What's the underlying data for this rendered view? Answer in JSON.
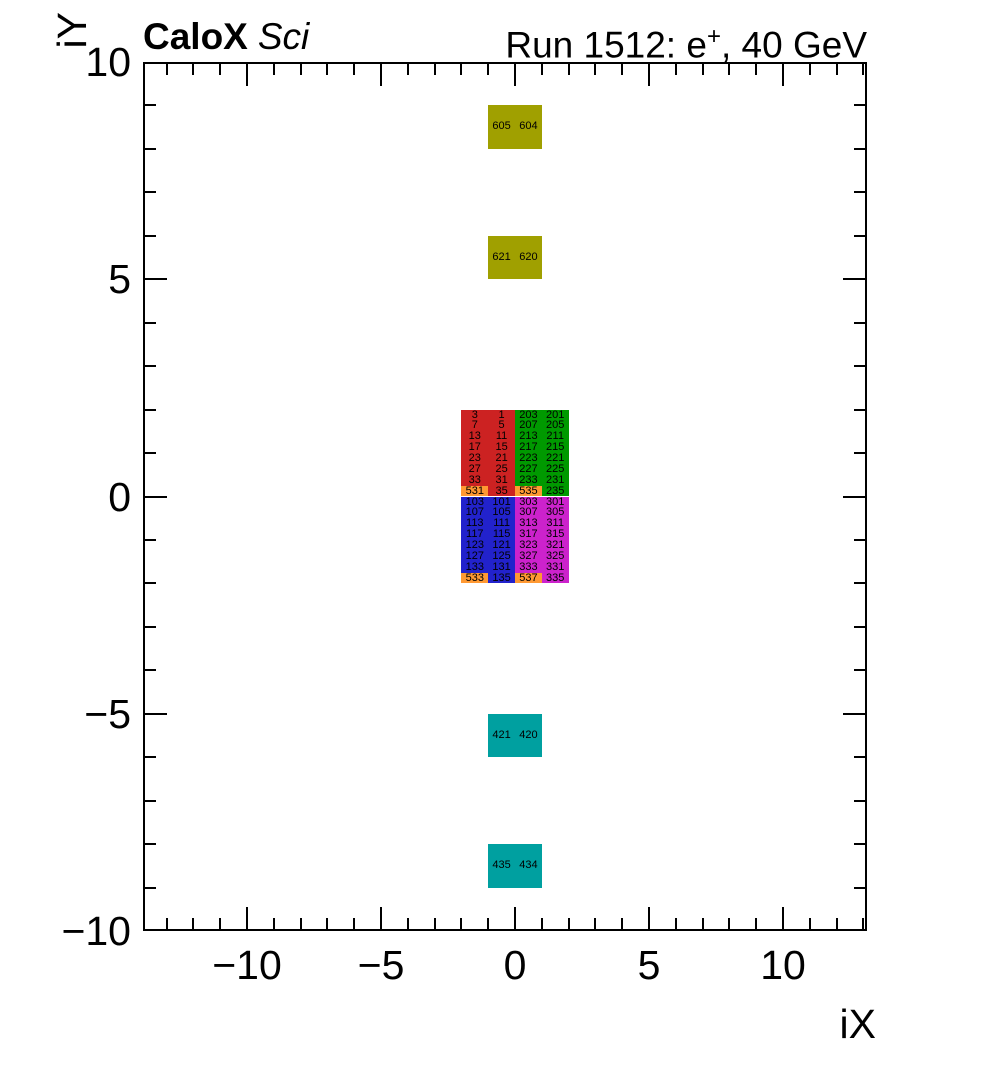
{
  "header": {
    "experiment": "CaloX",
    "sublabel": "Sci",
    "run_prefix": "Run 1512: e",
    "run_sup": "+",
    "run_suffix": ", 40 GeV"
  },
  "chart_data": {
    "type": "heatmap",
    "title": "Run 1512: e+, 40 GeV",
    "subtitle": "CaloX Sci",
    "xlabel": "iX",
    "ylabel": "iY",
    "xlim": [
      -13.9,
      13.1
    ],
    "ylim": [
      -10,
      10
    ],
    "grid": false,
    "legend": false,
    "x_ticks": {
      "minor_step": 1,
      "major": [
        {
          "v": -10,
          "label": "−10"
        },
        {
          "v": -5,
          "label": "−5"
        },
        {
          "v": 0,
          "label": "0"
        },
        {
          "v": 5,
          "label": "5"
        },
        {
          "v": 10,
          "label": "10"
        }
      ]
    },
    "y_ticks": {
      "minor_step": 1,
      "major": [
        {
          "v": 10,
          "label": "10"
        },
        {
          "v": 5,
          "label": "5"
        },
        {
          "v": 0,
          "label": "0"
        },
        {
          "v": -5,
          "label": "−5"
        },
        {
          "v": -10,
          "label": "−10"
        }
      ]
    },
    "palette": {
      "red": "#cc2222",
      "green": "#009900",
      "blue": "#2222cc",
      "magenta": "#cc22cc",
      "orange": "#ff9933",
      "olive": "#a0a000",
      "teal": "#00a0a0",
      "cell_text": "#000000",
      "axis": "#000000"
    },
    "quadrants": [
      {
        "name": "top-left",
        "color": "red",
        "x0": -2,
        "x1": 0,
        "y0": 0,
        "y1": 2,
        "cells": [
          [
            "3",
            "1"
          ],
          [
            "7",
            "5"
          ],
          [
            "13",
            "11"
          ],
          [
            "17",
            "15"
          ],
          [
            "23",
            "21"
          ],
          [
            "27",
            "25"
          ],
          [
            "33",
            "31"
          ],
          [
            "531",
            "35"
          ]
        ],
        "special_cells": [
          {
            "row": 7,
            "col": 0,
            "color": "orange"
          }
        ]
      },
      {
        "name": "top-right",
        "color": "green",
        "x0": 0,
        "x1": 2,
        "y0": 0,
        "y1": 2,
        "cells": [
          [
            "203",
            "201"
          ],
          [
            "207",
            "205"
          ],
          [
            "213",
            "211"
          ],
          [
            "217",
            "215"
          ],
          [
            "223",
            "221"
          ],
          [
            "227",
            "225"
          ],
          [
            "233",
            "231"
          ],
          [
            "535",
            "235"
          ]
        ],
        "special_cells": [
          {
            "row": 7,
            "col": 0,
            "color": "orange"
          }
        ]
      },
      {
        "name": "bottom-left",
        "color": "blue",
        "x0": -2,
        "x1": 0,
        "y0": -2,
        "y1": 0,
        "cells": [
          [
            "103",
            "101"
          ],
          [
            "107",
            "105"
          ],
          [
            "113",
            "111"
          ],
          [
            "117",
            "115"
          ],
          [
            "123",
            "121"
          ],
          [
            "127",
            "125"
          ],
          [
            "133",
            "131"
          ],
          [
            "533",
            "135"
          ]
        ],
        "special_cells": [
          {
            "row": 7,
            "col": 0,
            "color": "orange"
          }
        ]
      },
      {
        "name": "bottom-right",
        "color": "magenta",
        "x0": 0,
        "x1": 2,
        "y0": -2,
        "y1": 0,
        "cells": [
          [
            "303",
            "301"
          ],
          [
            "307",
            "305"
          ],
          [
            "313",
            "311"
          ],
          [
            "317",
            "315"
          ],
          [
            "323",
            "321"
          ],
          [
            "327",
            "325"
          ],
          [
            "333",
            "331"
          ],
          [
            "537",
            "335"
          ]
        ],
        "special_cells": [
          {
            "row": 7,
            "col": 0,
            "color": "orange"
          }
        ]
      }
    ],
    "blocks": [
      {
        "name": "olive-top",
        "color": "olive",
        "x0": -1,
        "x1": 1,
        "y0": 8,
        "y1": 9,
        "labels": [
          "605",
          "604"
        ]
      },
      {
        "name": "olive-mid",
        "color": "olive",
        "x0": -1,
        "x1": 1,
        "y0": 5,
        "y1": 6,
        "labels": [
          "621",
          "620"
        ]
      },
      {
        "name": "teal-mid",
        "color": "teal",
        "x0": -1,
        "x1": 1,
        "y0": -6,
        "y1": -5,
        "labels": [
          "421",
          "420"
        ]
      },
      {
        "name": "teal-bottom",
        "color": "teal",
        "x0": -1,
        "x1": 1,
        "y0": -9,
        "y1": -8,
        "labels": [
          "435",
          "434"
        ]
      }
    ]
  }
}
